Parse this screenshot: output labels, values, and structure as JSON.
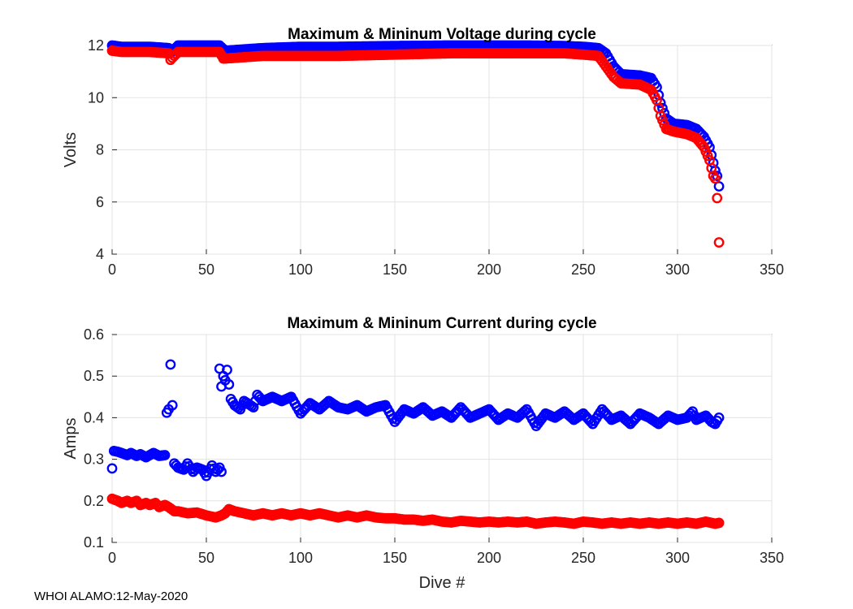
{
  "colors": {
    "max": "#0000ff",
    "min": "#ff0000",
    "grid": "#e3e3e3",
    "axis": "#262626"
  },
  "footer": "WHOI ALAMO:12-May-2020",
  "chart_data": [
    {
      "type": "scatter",
      "title": "Maximum & Mininum Voltage during cycle",
      "xlabel": "",
      "ylabel": "Volts",
      "xlim": [
        0,
        350
      ],
      "ylim": [
        4,
        12
      ],
      "xticks": [
        "0",
        "50",
        "100",
        "150",
        "200",
        "250",
        "300",
        "350"
      ],
      "yticks": [
        "4",
        "6",
        "8",
        "10",
        "12"
      ],
      "series": [
        {
          "name": "Maximum",
          "color": "#0000ff",
          "points": [
            [
              0,
              12.0
            ],
            [
              5,
              11.95
            ],
            [
              10,
              11.95
            ],
            [
              20,
              11.95
            ],
            [
              30,
              11.9
            ],
            [
              31,
              11.7
            ],
            [
              35,
              12.0
            ],
            [
              40,
              12.0
            ],
            [
              50,
              12.0
            ],
            [
              57,
              12.0
            ],
            [
              60,
              11.8
            ],
            [
              70,
              11.85
            ],
            [
              80,
              11.9
            ],
            [
              100,
              11.95
            ],
            [
              120,
              11.95
            ],
            [
              150,
              11.98
            ],
            [
              180,
              12.0
            ],
            [
              200,
              12.0
            ],
            [
              220,
              12.0
            ],
            [
              240,
              11.98
            ],
            [
              250,
              11.95
            ],
            [
              258,
              11.9
            ],
            [
              262,
              11.7
            ],
            [
              266,
              11.2
            ],
            [
              270,
              10.9
            ],
            [
              280,
              10.85
            ],
            [
              286,
              10.75
            ],
            [
              289,
              10.4
            ],
            [
              291,
              9.8
            ],
            [
              294,
              9.2
            ],
            [
              298,
              9.0
            ],
            [
              305,
              8.95
            ],
            [
              310,
              8.8
            ],
            [
              314,
              8.5
            ],
            [
              317,
              8.1
            ],
            [
              319,
              7.5
            ],
            [
              320,
              7.2
            ],
            [
              321,
              7.0
            ],
            [
              322,
              6.6
            ]
          ]
        },
        {
          "name": "Minimum",
          "color": "#ff0000",
          "points": [
            [
              0,
              11.8
            ],
            [
              5,
              11.75
            ],
            [
              10,
              11.75
            ],
            [
              20,
              11.75
            ],
            [
              30,
              11.7
            ],
            [
              31,
              11.45
            ],
            [
              35,
              11.75
            ],
            [
              40,
              11.75
            ],
            [
              50,
              11.75
            ],
            [
              57,
              11.75
            ],
            [
              59,
              11.5
            ],
            [
              60,
              11.5
            ],
            [
              70,
              11.55
            ],
            [
              80,
              11.6
            ],
            [
              100,
              11.6
            ],
            [
              120,
              11.6
            ],
            [
              150,
              11.65
            ],
            [
              180,
              11.7
            ],
            [
              200,
              11.7
            ],
            [
              220,
              11.7
            ],
            [
              240,
              11.7
            ],
            [
              250,
              11.65
            ],
            [
              258,
              11.6
            ],
            [
              262,
              11.2
            ],
            [
              266,
              10.8
            ],
            [
              270,
              10.55
            ],
            [
              280,
              10.5
            ],
            [
              286,
              10.3
            ],
            [
              289,
              9.9
            ],
            [
              291,
              9.3
            ],
            [
              294,
              8.8
            ],
            [
              298,
              8.7
            ],
            [
              305,
              8.6
            ],
            [
              310,
              8.45
            ],
            [
              314,
              8.1
            ],
            [
              317,
              7.6
            ],
            [
              319,
              7.0
            ],
            [
              320,
              6.9
            ],
            [
              321,
              6.15
            ],
            [
              322,
              4.45
            ]
          ]
        }
      ]
    },
    {
      "type": "scatter",
      "title": "Maximum & Mininum Current during cycle",
      "xlabel": "Dive #",
      "ylabel": "Amps",
      "xlim": [
        0,
        350
      ],
      "ylim": [
        0.1,
        0.6
      ],
      "xticks": [
        "0",
        "50",
        "100",
        "150",
        "200",
        "250",
        "300",
        "350"
      ],
      "yticks": [
        "0.1",
        "0.2",
        "0.3",
        "0.4",
        "0.5",
        "0.6"
      ],
      "series": [
        {
          "name": "Maximum",
          "color": "#0000ff",
          "points": [
            [
              0,
              0.278
            ],
            [
              1,
              0.32
            ],
            [
              3,
              0.318
            ],
            [
              5,
              0.315
            ],
            [
              8,
              0.31
            ],
            [
              10,
              0.315
            ],
            [
              13,
              0.308
            ],
            [
              15,
              0.312
            ],
            [
              18,
              0.305
            ],
            [
              20,
              0.31
            ],
            [
              22,
              0.315
            ],
            [
              25,
              0.308
            ],
            [
              28,
              0.31
            ],
            [
              29,
              0.412
            ],
            [
              30,
              0.42
            ],
            [
              31,
              0.528
            ],
            [
              32,
              0.43
            ],
            [
              33,
              0.29
            ],
            [
              35,
              0.28
            ],
            [
              38,
              0.275
            ],
            [
              40,
              0.29
            ],
            [
              43,
              0.27
            ],
            [
              45,
              0.28
            ],
            [
              48,
              0.275
            ],
            [
              50,
              0.26
            ],
            [
              53,
              0.285
            ],
            [
              55,
              0.27
            ],
            [
              57,
              0.28
            ],
            [
              58,
              0.27
            ],
            [
              57,
              0.518
            ],
            [
              58,
              0.475
            ],
            [
              59,
              0.5
            ],
            [
              60,
              0.49
            ],
            [
              61,
              0.515
            ],
            [
              63,
              0.445
            ],
            [
              65,
              0.43
            ],
            [
              68,
              0.42
            ],
            [
              70,
              0.44
            ],
            [
              75,
              0.425
            ],
            [
              77,
              0.455
            ],
            [
              80,
              0.44
            ],
            [
              85,
              0.45
            ],
            [
              90,
              0.44
            ],
            [
              95,
              0.45
            ],
            [
              100,
              0.41
            ],
            [
              105,
              0.435
            ],
            [
              110,
              0.42
            ],
            [
              115,
              0.44
            ],
            [
              120,
              0.425
            ],
            [
              125,
              0.42
            ],
            [
              130,
              0.43
            ],
            [
              135,
              0.415
            ],
            [
              140,
              0.425
            ],
            [
              145,
              0.43
            ],
            [
              150,
              0.39
            ],
            [
              155,
              0.42
            ],
            [
              160,
              0.41
            ],
            [
              165,
              0.425
            ],
            [
              170,
              0.405
            ],
            [
              175,
              0.415
            ],
            [
              180,
              0.4
            ],
            [
              185,
              0.425
            ],
            [
              190,
              0.4
            ],
            [
              195,
              0.41
            ],
            [
              200,
              0.42
            ],
            [
              205,
              0.395
            ],
            [
              210,
              0.41
            ],
            [
              215,
              0.4
            ],
            [
              220,
              0.42
            ],
            [
              225,
              0.38
            ],
            [
              230,
              0.41
            ],
            [
              235,
              0.4
            ],
            [
              240,
              0.415
            ],
            [
              245,
              0.395
            ],
            [
              250,
              0.41
            ],
            [
              255,
              0.385
            ],
            [
              260,
              0.42
            ],
            [
              265,
              0.395
            ],
            [
              270,
              0.405
            ],
            [
              275,
              0.385
            ],
            [
              280,
              0.41
            ],
            [
              285,
              0.4
            ],
            [
              290,
              0.385
            ],
            [
              295,
              0.405
            ],
            [
              300,
              0.395
            ],
            [
              305,
              0.4
            ],
            [
              308,
              0.415
            ],
            [
              310,
              0.395
            ],
            [
              315,
              0.405
            ],
            [
              318,
              0.39
            ],
            [
              320,
              0.385
            ],
            [
              322,
              0.4
            ]
          ]
        },
        {
          "name": "Minimum",
          "color": "#ff0000",
          "points": [
            [
              0,
              0.205
            ],
            [
              3,
              0.2
            ],
            [
              5,
              0.195
            ],
            [
              8,
              0.2
            ],
            [
              10,
              0.195
            ],
            [
              13,
              0.2
            ],
            [
              15,
              0.19
            ],
            [
              18,
              0.195
            ],
            [
              20,
              0.19
            ],
            [
              23,
              0.195
            ],
            [
              25,
              0.185
            ],
            [
              28,
              0.19
            ],
            [
              30,
              0.185
            ],
            [
              33,
              0.175
            ],
            [
              35,
              0.175
            ],
            [
              40,
              0.17
            ],
            [
              45,
              0.172
            ],
            [
              50,
              0.165
            ],
            [
              55,
              0.16
            ],
            [
              58,
              0.165
            ],
            [
              60,
              0.17
            ],
            [
              62,
              0.18
            ],
            [
              65,
              0.175
            ],
            [
              70,
              0.17
            ],
            [
              75,
              0.165
            ],
            [
              80,
              0.17
            ],
            [
              85,
              0.165
            ],
            [
              90,
              0.17
            ],
            [
              95,
              0.165
            ],
            [
              100,
              0.17
            ],
            [
              105,
              0.165
            ],
            [
              110,
              0.17
            ],
            [
              115,
              0.165
            ],
            [
              120,
              0.16
            ],
            [
              125,
              0.165
            ],
            [
              130,
              0.16
            ],
            [
              135,
              0.165
            ],
            [
              140,
              0.16
            ],
            [
              145,
              0.158
            ],
            [
              150,
              0.158
            ],
            [
              155,
              0.155
            ],
            [
              160,
              0.155
            ],
            [
              165,
              0.152
            ],
            [
              170,
              0.155
            ],
            [
              175,
              0.15
            ],
            [
              180,
              0.148
            ],
            [
              185,
              0.152
            ],
            [
              190,
              0.15
            ],
            [
              195,
              0.148
            ],
            [
              200,
              0.15
            ],
            [
              205,
              0.148
            ],
            [
              210,
              0.15
            ],
            [
              215,
              0.148
            ],
            [
              220,
              0.15
            ],
            [
              225,
              0.145
            ],
            [
              230,
              0.148
            ],
            [
              235,
              0.15
            ],
            [
              240,
              0.148
            ],
            [
              245,
              0.145
            ],
            [
              250,
              0.15
            ],
            [
              255,
              0.148
            ],
            [
              260,
              0.145
            ],
            [
              265,
              0.148
            ],
            [
              270,
              0.145
            ],
            [
              275,
              0.148
            ],
            [
              280,
              0.145
            ],
            [
              285,
              0.148
            ],
            [
              290,
              0.145
            ],
            [
              295,
              0.148
            ],
            [
              300,
              0.145
            ],
            [
              305,
              0.148
            ],
            [
              310,
              0.145
            ],
            [
              315,
              0.15
            ],
            [
              320,
              0.145
            ],
            [
              322,
              0.147
            ]
          ]
        }
      ]
    }
  ]
}
